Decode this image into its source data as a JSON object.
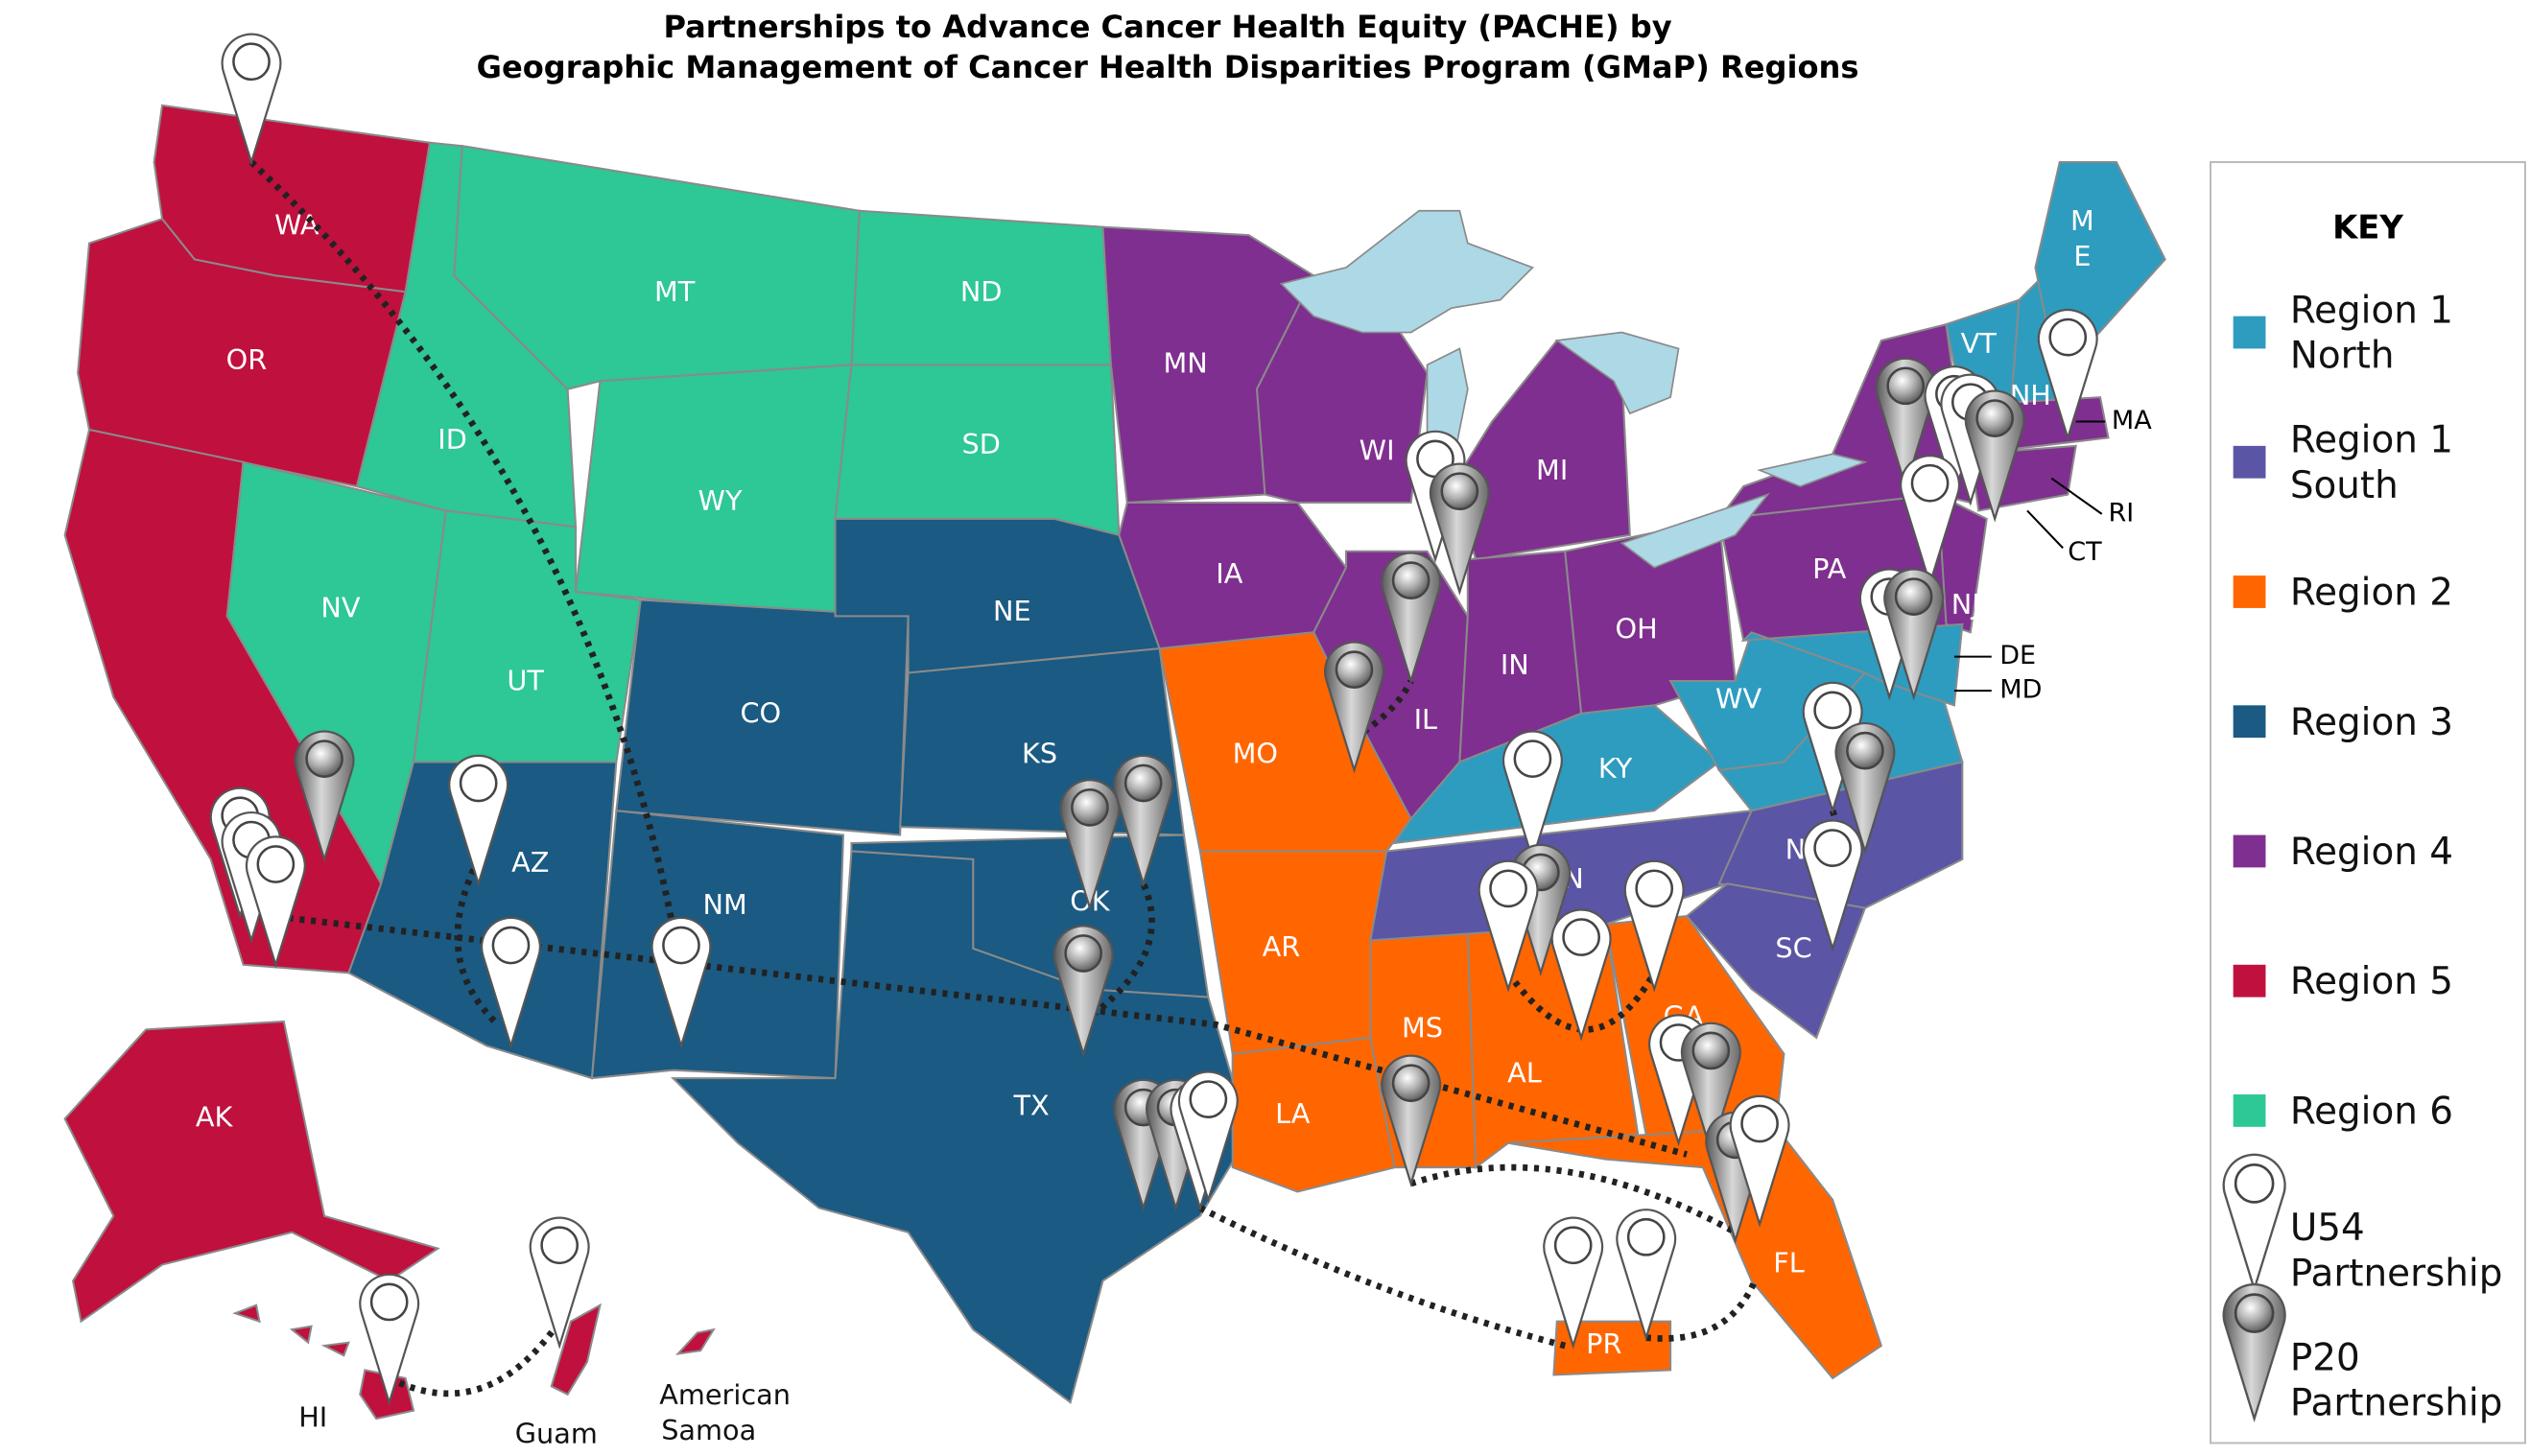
{
  "title": [
    "Partnerships to Advance Cancer Health Equity (PACHE) by",
    "Geographic Management of Cancer Health Disparities Program (GMaP) Regions"
  ],
  "state_labels": [
    "WA",
    "OR",
    "ID",
    "MT",
    "ND",
    "NV",
    "WY",
    "SD",
    "UT",
    "CO",
    "NE",
    "AZ",
    "NM",
    "KS",
    "OK",
    "TX",
    "MN",
    "IA",
    "WI",
    "MI",
    "IL",
    "IN",
    "OH",
    "MO",
    "AR",
    "MS",
    "AL",
    "LA",
    "GA",
    "FL",
    "KY",
    "WV",
    "TN",
    "NC",
    "SC",
    "PA",
    "NJ",
    "VT",
    "NH",
    "ME",
    "MA",
    "RI",
    "CT",
    "DE",
    "MD",
    "PR",
    "AK"
  ],
  "territories": [
    [
      "HI"
    ],
    [
      "Guam"
    ],
    [
      "American",
      "Samoa"
    ]
  ],
  "key": {
    "title": "KEY",
    "regions": [
      {
        "label": [
          "Region 1",
          "North"
        ],
        "color": "#2e9cbf"
      },
      {
        "label": [
          "Region 1",
          "South"
        ],
        "color": "#5b55a6"
      },
      {
        "label": [
          "Region 2"
        ],
        "color": "#ff6600"
      },
      {
        "label": [
          "Region 3"
        ],
        "color": "#1b5a82"
      },
      {
        "label": [
          "Region 4"
        ],
        "color": "#7f2f8f"
      },
      {
        "label": [
          "Region 5"
        ],
        "color": "#c0103d"
      },
      {
        "label": [
          "Region 6"
        ],
        "color": "#2ec796"
      }
    ],
    "markers": [
      {
        "label": [
          "U54",
          "Partnership"
        ]
      },
      {
        "label": [
          "P20",
          "Partnership"
        ]
      }
    ]
  }
}
